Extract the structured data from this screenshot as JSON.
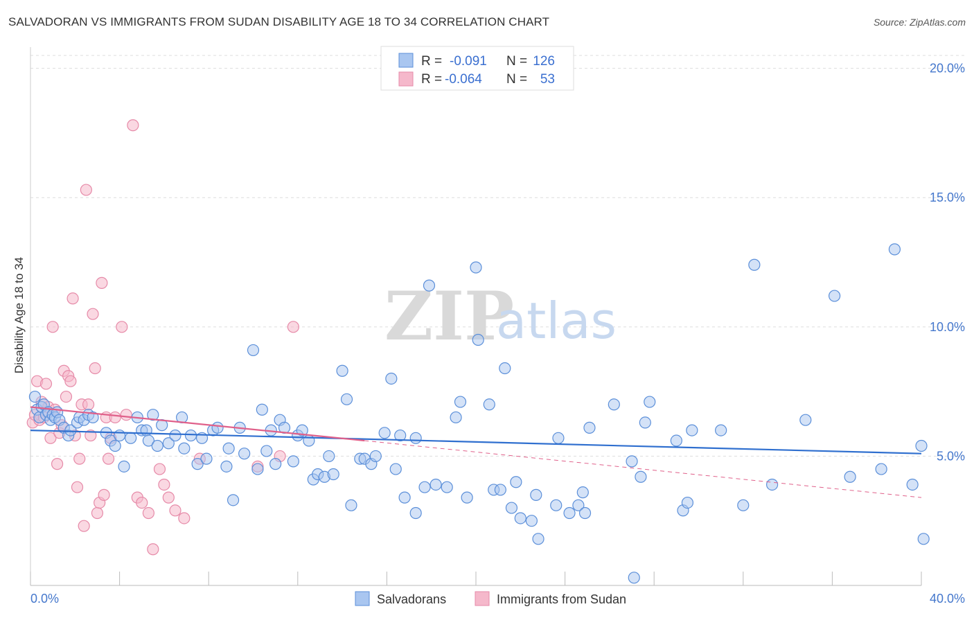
{
  "title": "SALVADORAN VS IMMIGRANTS FROM SUDAN DISABILITY AGE 18 TO 34 CORRELATION CHART",
  "source": "Source: ZipAtlas.com",
  "watermark": {
    "zip": "ZIP",
    "atlas": "atlas"
  },
  "colors": {
    "blue_fill": "#a9c6f0",
    "blue_stroke": "#5b8fd9",
    "blue_line": "#2f6fcf",
    "pink_fill": "#f5b8cb",
    "pink_stroke": "#e68aa8",
    "pink_line": "#e0608a",
    "grid": "#dddddd",
    "tick_text": "#4477cc"
  },
  "legend": {
    "r_label": "R =",
    "n_label": "N =",
    "series": [
      {
        "r": "-0.091",
        "n": "126"
      },
      {
        "r": "-0.064",
        "n": "53"
      }
    ]
  },
  "bottom_legend": [
    "Salvadorans",
    "Immigrants from Sudan"
  ],
  "chart_data": {
    "type": "scatter",
    "title": "SALVADORAN VS IMMIGRANTS FROM SUDAN DISABILITY AGE 18 TO 34 CORRELATION CHART",
    "xlabel": "",
    "ylabel": "Disability Age 18 to 34",
    "xlim": [
      0,
      40
    ],
    "ylim": [
      0,
      20.5
    ],
    "x_tick_labels": [
      "0.0%",
      "40.0%"
    ],
    "y_ticks": [
      5,
      10,
      15,
      20
    ],
    "y_tick_labels": [
      "5.0%",
      "10.0%",
      "15.0%",
      "20.0%"
    ],
    "grid": true,
    "legend_position": "top-center",
    "series": [
      {
        "name": "Salvadorans",
        "points": [
          [
            0.2,
            7.3
          ],
          [
            0.3,
            6.8
          ],
          [
            0.4,
            6.5
          ],
          [
            0.5,
            6.9
          ],
          [
            0.6,
            7.0
          ],
          [
            0.7,
            6.6
          ],
          [
            0.8,
            6.7
          ],
          [
            0.9,
            6.4
          ],
          [
            1.0,
            6.6
          ],
          [
            1.1,
            6.5
          ],
          [
            1.2,
            6.7
          ],
          [
            1.3,
            6.4
          ],
          [
            1.5,
            6.1
          ],
          [
            1.7,
            5.8
          ],
          [
            1.8,
            6.0
          ],
          [
            2.1,
            6.3
          ],
          [
            2.2,
            6.5
          ],
          [
            2.4,
            6.4
          ],
          [
            2.6,
            6.6
          ],
          [
            2.8,
            6.5
          ],
          [
            3.4,
            5.9
          ],
          [
            3.6,
            5.6
          ],
          [
            3.8,
            5.4
          ],
          [
            4.0,
            5.8
          ],
          [
            4.2,
            4.6
          ],
          [
            4.5,
            5.7
          ],
          [
            4.8,
            6.5
          ],
          [
            5.0,
            6.0
          ],
          [
            5.2,
            6.0
          ],
          [
            5.3,
            5.6
          ],
          [
            5.5,
            6.6
          ],
          [
            5.7,
            5.4
          ],
          [
            5.9,
            6.2
          ],
          [
            6.2,
            5.5
          ],
          [
            6.5,
            5.8
          ],
          [
            6.8,
            6.5
          ],
          [
            6.9,
            5.3
          ],
          [
            7.2,
            5.8
          ],
          [
            7.5,
            4.7
          ],
          [
            7.7,
            5.7
          ],
          [
            7.9,
            4.9
          ],
          [
            8.2,
            6.0
          ],
          [
            8.4,
            6.1
          ],
          [
            8.8,
            4.6
          ],
          [
            8.9,
            5.3
          ],
          [
            9.1,
            3.3
          ],
          [
            9.4,
            6.1
          ],
          [
            9.6,
            5.1
          ],
          [
            10.0,
            9.1
          ],
          [
            10.2,
            4.5
          ],
          [
            10.4,
            6.8
          ],
          [
            10.6,
            5.2
          ],
          [
            10.8,
            6.0
          ],
          [
            11.0,
            4.7
          ],
          [
            11.2,
            6.4
          ],
          [
            11.4,
            6.1
          ],
          [
            11.8,
            4.8
          ],
          [
            12.0,
            5.8
          ],
          [
            12.2,
            6.0
          ],
          [
            12.5,
            5.6
          ],
          [
            12.7,
            4.1
          ],
          [
            12.9,
            4.3
          ],
          [
            13.2,
            4.2
          ],
          [
            13.4,
            5.0
          ],
          [
            13.6,
            4.3
          ],
          [
            14.0,
            8.3
          ],
          [
            14.2,
            7.2
          ],
          [
            14.4,
            3.1
          ],
          [
            14.8,
            4.9
          ],
          [
            15.0,
            4.9
          ],
          [
            15.3,
            4.7
          ],
          [
            15.5,
            5.0
          ],
          [
            15.9,
            5.9
          ],
          [
            16.2,
            8.0
          ],
          [
            16.4,
            4.5
          ],
          [
            16.6,
            5.8
          ],
          [
            16.8,
            3.4
          ],
          [
            17.3,
            2.8
          ],
          [
            17.3,
            5.7
          ],
          [
            17.7,
            3.8
          ],
          [
            17.9,
            11.6
          ],
          [
            18.2,
            3.9
          ],
          [
            18.7,
            3.8
          ],
          [
            19.1,
            6.5
          ],
          [
            19.3,
            7.1
          ],
          [
            19.6,
            3.4
          ],
          [
            20.0,
            12.3
          ],
          [
            20.1,
            9.5
          ],
          [
            20.6,
            7.0
          ],
          [
            20.8,
            3.7
          ],
          [
            21.1,
            3.7
          ],
          [
            21.3,
            8.4
          ],
          [
            21.6,
            3.0
          ],
          [
            21.8,
            4.0
          ],
          [
            22.0,
            2.6
          ],
          [
            22.5,
            2.5
          ],
          [
            22.7,
            3.5
          ],
          [
            22.8,
            1.8
          ],
          [
            23.6,
            3.1
          ],
          [
            23.7,
            5.7
          ],
          [
            24.2,
            2.8
          ],
          [
            24.6,
            3.1
          ],
          [
            24.8,
            3.6
          ],
          [
            24.9,
            2.8
          ],
          [
            25.1,
            6.1
          ],
          [
            26.2,
            7.0
          ],
          [
            27.0,
            4.8
          ],
          [
            27.1,
            0.3
          ],
          [
            27.4,
            4.2
          ],
          [
            27.6,
            6.3
          ],
          [
            27.8,
            7.1
          ],
          [
            29.0,
            5.6
          ],
          [
            29.3,
            2.9
          ],
          [
            29.5,
            3.2
          ],
          [
            29.7,
            6.0
          ],
          [
            31.0,
            6.0
          ],
          [
            32.0,
            3.1
          ],
          [
            32.5,
            12.4
          ],
          [
            33.3,
            3.9
          ],
          [
            34.8,
            6.4
          ],
          [
            36.1,
            11.2
          ],
          [
            36.8,
            4.2
          ],
          [
            38.2,
            4.5
          ],
          [
            38.8,
            13.0
          ],
          [
            39.6,
            3.9
          ],
          [
            40.0,
            5.4
          ],
          [
            40.1,
            1.8
          ]
        ],
        "trend": [
          [
            0,
            6.0
          ],
          [
            40,
            5.1
          ]
        ]
      },
      {
        "name": "Immigrants from Sudan",
        "points": [
          [
            0.1,
            6.3
          ],
          [
            0.2,
            6.6
          ],
          [
            0.3,
            7.9
          ],
          [
            0.4,
            6.4
          ],
          [
            0.5,
            7.1
          ],
          [
            0.6,
            6.5
          ],
          [
            0.7,
            7.8
          ],
          [
            0.8,
            6.9
          ],
          [
            0.9,
            5.7
          ],
          [
            1.0,
            10.0
          ],
          [
            1.1,
            6.8
          ],
          [
            1.2,
            4.7
          ],
          [
            1.3,
            5.9
          ],
          [
            1.4,
            6.2
          ],
          [
            1.5,
            8.3
          ],
          [
            1.6,
            7.3
          ],
          [
            1.7,
            8.1
          ],
          [
            1.8,
            7.9
          ],
          [
            1.9,
            11.1
          ],
          [
            2.0,
            5.8
          ],
          [
            2.1,
            3.8
          ],
          [
            2.2,
            4.9
          ],
          [
            2.3,
            7.0
          ],
          [
            2.4,
            2.3
          ],
          [
            2.5,
            15.3
          ],
          [
            2.6,
            7.0
          ],
          [
            2.7,
            5.8
          ],
          [
            2.8,
            10.5
          ],
          [
            2.9,
            8.4
          ],
          [
            3.0,
            2.8
          ],
          [
            3.1,
            3.2
          ],
          [
            3.2,
            11.7
          ],
          [
            3.3,
            3.5
          ],
          [
            3.4,
            6.5
          ],
          [
            3.5,
            4.9
          ],
          [
            3.6,
            5.7
          ],
          [
            3.8,
            6.5
          ],
          [
            4.1,
            10.0
          ],
          [
            4.3,
            6.6
          ],
          [
            4.6,
            17.8
          ],
          [
            4.8,
            3.4
          ],
          [
            5.0,
            3.2
          ],
          [
            5.3,
            2.8
          ],
          [
            5.5,
            1.4
          ],
          [
            5.8,
            4.5
          ],
          [
            6.0,
            3.9
          ],
          [
            6.2,
            3.4
          ],
          [
            6.5,
            2.9
          ],
          [
            6.9,
            2.6
          ],
          [
            7.6,
            4.9
          ],
          [
            10.2,
            4.6
          ],
          [
            11.2,
            5.0
          ],
          [
            11.8,
            10.0
          ]
        ],
        "trend": [
          [
            0,
            6.9
          ],
          [
            15,
            5.6
          ]
        ],
        "trend_extension": [
          [
            15,
            5.6
          ],
          [
            40,
            3.4
          ]
        ]
      }
    ]
  }
}
